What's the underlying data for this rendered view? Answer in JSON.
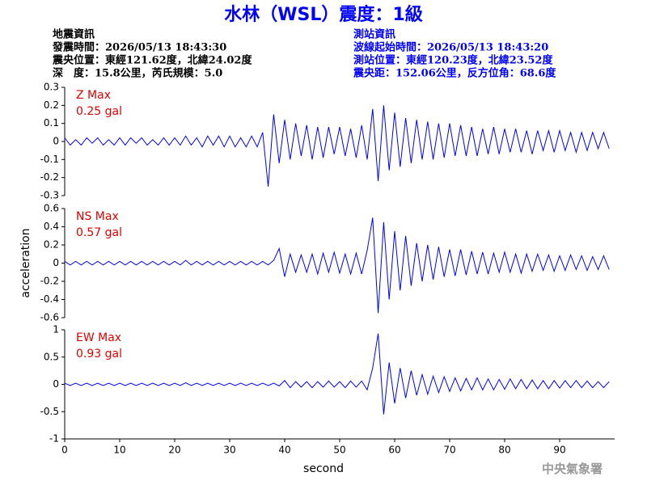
{
  "header": {
    "title": "水林（WSL）震度：1級",
    "left": [
      "地震資訊",
      "發震時間：2026/05/13 18:43:30",
      "震央位置：東經121.62度，北緯24.02度",
      "深　度：15.8公里，芮氏規模：5.0"
    ],
    "right": [
      "測站資訊",
      "波線起始時間：2026/05/13 18:43:20",
      "測站位置：東經120.23度，北緯23.52度",
      "震央距：152.06公里，反方位角：68.6度"
    ],
    "watermark": "中央氣象署"
  },
  "chart_data": [
    {
      "type": "line",
      "annotation": [
        "Z Max",
        "0.25 gal"
      ],
      "color": "#0000ff",
      "xlim": [
        0,
        100
      ],
      "ylim": [
        -0.3,
        0.3
      ],
      "yticks": [
        0.3,
        0.2,
        0.1,
        0,
        -0.1,
        -0.2,
        -0.3
      ],
      "x": [
        0,
        1,
        2,
        3,
        4,
        5,
        6,
        7,
        8,
        9,
        10,
        11,
        12,
        13,
        14,
        15,
        16,
        17,
        18,
        19,
        20,
        21,
        22,
        23,
        24,
        25,
        26,
        27,
        28,
        29,
        30,
        31,
        32,
        33,
        34,
        35,
        36,
        37,
        38,
        39,
        40,
        41,
        42,
        43,
        44,
        45,
        46,
        47,
        48,
        49,
        50,
        51,
        52,
        53,
        54,
        55,
        56,
        57,
        58,
        59,
        60,
        61,
        62,
        63,
        64,
        65,
        66,
        67,
        68,
        69,
        70,
        71,
        72,
        73,
        74,
        75,
        76,
        77,
        78,
        79,
        80,
        81,
        82,
        83,
        84,
        85,
        86,
        87,
        88,
        89,
        90,
        91,
        92,
        93,
        94,
        95,
        96,
        97,
        98,
        99
      ],
      "values": [
        0.02,
        -0.02,
        0.01,
        -0.02,
        0.02,
        -0.01,
        0.02,
        -0.02,
        0.01,
        -0.02,
        0.02,
        -0.02,
        0.02,
        -0.01,
        0.02,
        -0.02,
        0.01,
        -0.02,
        0.02,
        -0.02,
        0.02,
        -0.02,
        0.03,
        -0.02,
        0.02,
        -0.03,
        0.03,
        -0.02,
        0.03,
        -0.03,
        0.03,
        -0.03,
        0.02,
        -0.03,
        0.03,
        -0.03,
        0.05,
        -0.25,
        0.15,
        -0.12,
        0.12,
        -0.1,
        0.1,
        -0.08,
        0.09,
        -0.1,
        0.08,
        -0.09,
        0.08,
        -0.07,
        0.08,
        -0.08,
        0.07,
        -0.09,
        0.09,
        -0.1,
        0.18,
        -0.22,
        0.2,
        -0.16,
        0.16,
        -0.14,
        0.13,
        -0.12,
        0.12,
        -0.1,
        0.11,
        -0.1,
        0.1,
        -0.09,
        0.1,
        -0.08,
        0.09,
        -0.08,
        0.08,
        -0.08,
        0.07,
        -0.07,
        0.08,
        -0.07,
        0.07,
        -0.06,
        0.07,
        -0.06,
        0.06,
        -0.07,
        0.06,
        -0.05,
        0.06,
        -0.06,
        0.06,
        -0.05,
        0.05,
        -0.06,
        0.05,
        -0.05,
        0.05,
        -0.04,
        0.05,
        -0.04
      ]
    },
    {
      "type": "line",
      "annotation": [
        "NS Max",
        "0.57 gal"
      ],
      "color": "#0000ff",
      "ylabel": "acceleration",
      "xlim": [
        0,
        100
      ],
      "ylim": [
        -0.6,
        0.6
      ],
      "yticks": [
        0.6,
        0.4,
        0.2,
        0,
        -0.2,
        -0.4,
        -0.6
      ],
      "x": [
        0,
        1,
        2,
        3,
        4,
        5,
        6,
        7,
        8,
        9,
        10,
        11,
        12,
        13,
        14,
        15,
        16,
        17,
        18,
        19,
        20,
        21,
        22,
        23,
        24,
        25,
        26,
        27,
        28,
        29,
        30,
        31,
        32,
        33,
        34,
        35,
        36,
        37,
        38,
        39,
        40,
        41,
        42,
        43,
        44,
        45,
        46,
        47,
        48,
        49,
        50,
        51,
        52,
        53,
        54,
        55,
        56,
        57,
        58,
        59,
        60,
        61,
        62,
        63,
        64,
        65,
        66,
        67,
        68,
        69,
        70,
        71,
        72,
        73,
        74,
        75,
        76,
        77,
        78,
        79,
        80,
        81,
        82,
        83,
        84,
        85,
        86,
        87,
        88,
        89,
        90,
        91,
        92,
        93,
        94,
        95,
        96,
        97,
        98,
        99
      ],
      "values": [
        0.02,
        -0.02,
        0.02,
        -0.02,
        0.02,
        -0.02,
        0.02,
        -0.02,
        0.02,
        -0.02,
        0.02,
        -0.02,
        0.02,
        -0.02,
        0.02,
        -0.02,
        0.02,
        -0.02,
        0.02,
        -0.02,
        0.02,
        -0.02,
        0.03,
        -0.02,
        0.02,
        -0.02,
        0.02,
        -0.02,
        0.02,
        -0.02,
        0.02,
        -0.02,
        0.02,
        -0.02,
        0.02,
        -0.02,
        0.02,
        -0.02,
        0.03,
        0.16,
        -0.15,
        0.1,
        -0.1,
        0.09,
        -0.1,
        0.1,
        -0.12,
        0.11,
        -0.1,
        0.12,
        -0.11,
        0.1,
        -0.12,
        0.11,
        -0.12,
        0.14,
        0.5,
        -0.55,
        0.45,
        -0.4,
        0.35,
        -0.3,
        0.3,
        -0.25,
        0.22,
        -0.2,
        0.2,
        -0.18,
        0.18,
        -0.15,
        0.15,
        -0.14,
        0.15,
        -0.13,
        0.13,
        -0.12,
        0.12,
        -0.12,
        0.11,
        -0.1,
        0.12,
        -0.1,
        0.1,
        -0.11,
        0.1,
        -0.09,
        0.1,
        -0.08,
        0.09,
        -0.09,
        0.08,
        -0.08,
        0.09,
        -0.07,
        0.08,
        -0.08,
        0.07,
        -0.07,
        0.08,
        -0.07
      ]
    },
    {
      "type": "line",
      "annotation": [
        "EW Max",
        "0.93 gal"
      ],
      "color": "#0000ff",
      "xlabel": "second",
      "xlim": [
        0,
        100
      ],
      "xticks": [
        0,
        10,
        20,
        30,
        40,
        50,
        60,
        70,
        80,
        90
      ],
      "ylim": [
        -1,
        1
      ],
      "yticks": [
        1,
        0.5,
        0,
        -0.5,
        -1
      ],
      "x": [
        0,
        1,
        2,
        3,
        4,
        5,
        6,
        7,
        8,
        9,
        10,
        11,
        12,
        13,
        14,
        15,
        16,
        17,
        18,
        19,
        20,
        21,
        22,
        23,
        24,
        25,
        26,
        27,
        28,
        29,
        30,
        31,
        32,
        33,
        34,
        35,
        36,
        37,
        38,
        39,
        40,
        41,
        42,
        43,
        44,
        45,
        46,
        47,
        48,
        49,
        50,
        51,
        52,
        53,
        54,
        55,
        56,
        57,
        58,
        59,
        60,
        61,
        62,
        63,
        64,
        65,
        66,
        67,
        68,
        69,
        70,
        71,
        72,
        73,
        74,
        75,
        76,
        77,
        78,
        79,
        80,
        81,
        82,
        83,
        84,
        85,
        86,
        87,
        88,
        89,
        90,
        91,
        92,
        93,
        94,
        95,
        96,
        97,
        98,
        99
      ],
      "values": [
        0.02,
        -0.02,
        0.02,
        -0.02,
        0.02,
        -0.02,
        0.02,
        -0.02,
        0.02,
        -0.02,
        0.02,
        -0.02,
        0.02,
        -0.02,
        0.02,
        -0.02,
        0.02,
        -0.02,
        0.02,
        -0.02,
        0.02,
        -0.02,
        0.03,
        -0.02,
        0.02,
        -0.02,
        0.02,
        -0.02,
        0.02,
        -0.02,
        0.02,
        -0.02,
        0.02,
        -0.02,
        0.02,
        -0.02,
        0.02,
        -0.02,
        0.02,
        -0.03,
        0.07,
        -0.06,
        0.05,
        -0.05,
        0.05,
        -0.06,
        0.05,
        -0.05,
        0.06,
        -0.05,
        0.05,
        -0.06,
        0.06,
        -0.05,
        0.06,
        -0.1,
        0.3,
        0.93,
        -0.55,
        0.4,
        -0.35,
        0.3,
        -0.25,
        0.25,
        -0.2,
        0.18,
        -0.18,
        0.15,
        -0.15,
        0.14,
        -0.13,
        0.12,
        -0.12,
        0.11,
        -0.1,
        0.12,
        -0.1,
        0.1,
        -0.1,
        0.09,
        -0.09,
        0.1,
        -0.08,
        0.09,
        -0.08,
        0.08,
        -0.08,
        0.07,
        -0.08,
        0.07,
        -0.07,
        0.07,
        -0.06,
        0.07,
        -0.06,
        0.06,
        -0.06,
        0.05,
        -0.06,
        0.05
      ]
    }
  ]
}
